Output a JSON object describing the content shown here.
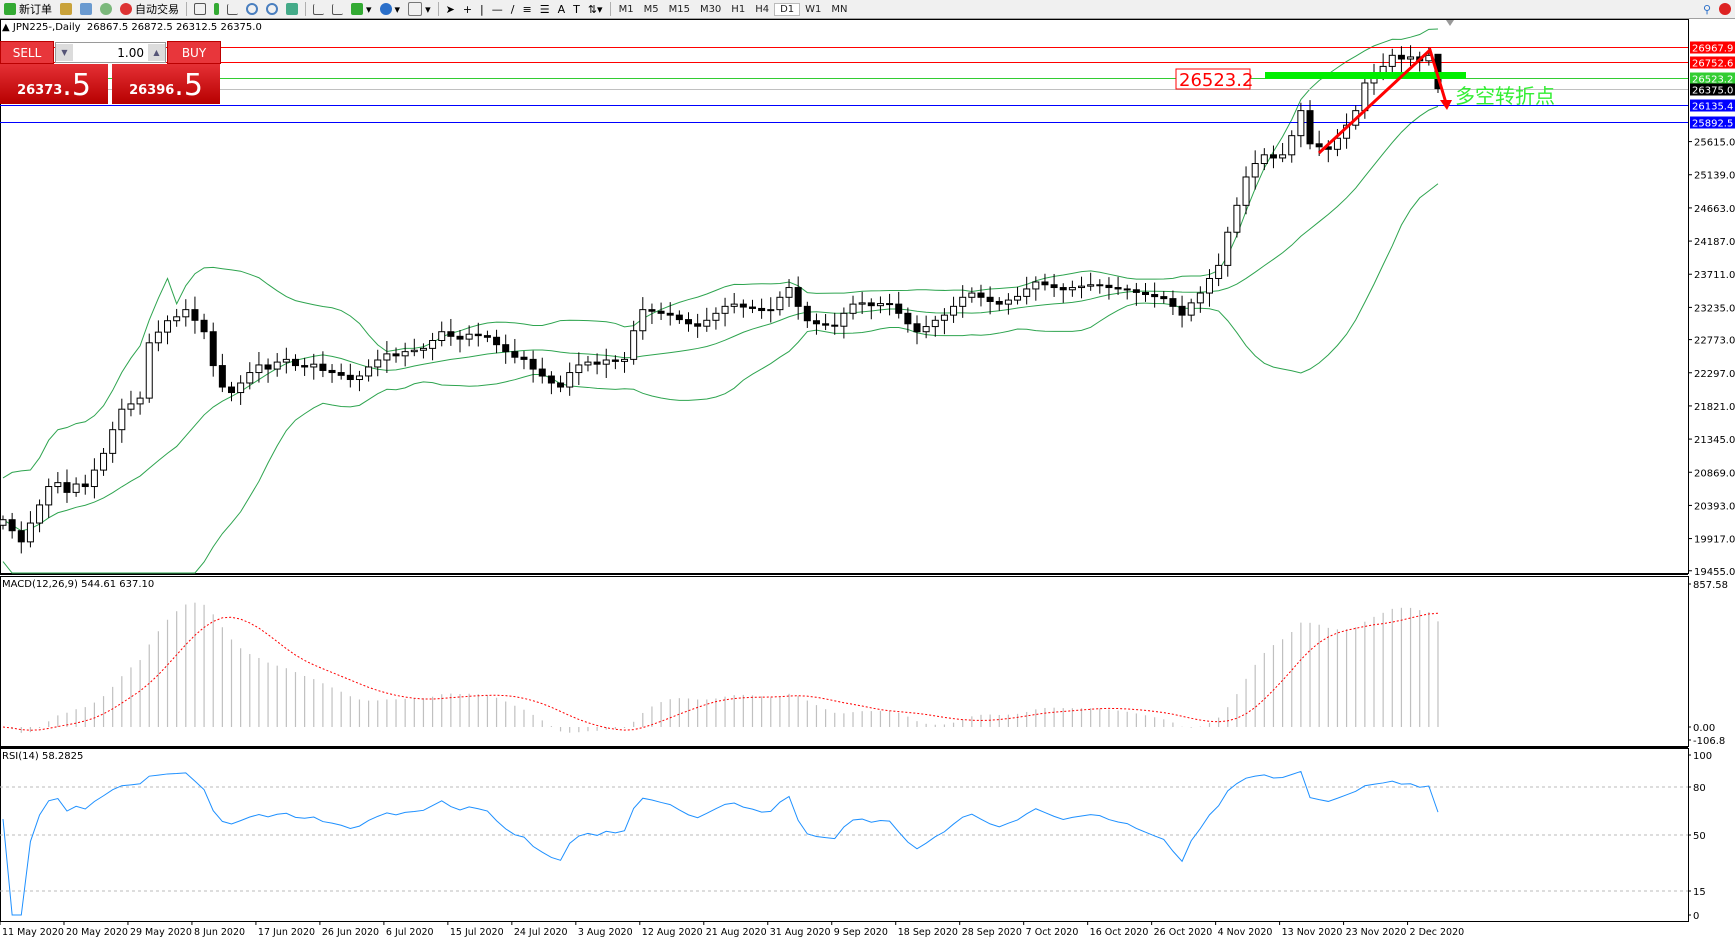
{
  "toolbar": {
    "new_order": "新订单",
    "auto_trading": "自动交易",
    "timeframes": [
      "M1",
      "M5",
      "M15",
      "M30",
      "H1",
      "H4",
      "D1",
      "W1",
      "MN"
    ],
    "active_timeframe": "D1"
  },
  "chart": {
    "symbol_title": "JPN225-,Daily",
    "ohlc_text": "26867.5 26872.5 26312.5 26375.0",
    "last_bar": {
      "open": 26867.5,
      "high": 26872.5,
      "low": 26312.5,
      "close": 26375.0
    }
  },
  "trade_panel": {
    "sell_label": "SELL",
    "buy_label": "BUY",
    "lot": "1.00",
    "sell_price_main": "26373",
    "sell_price_frac": ".5",
    "buy_price_main": "26396",
    "buy_price_frac": ".5"
  },
  "price_axis": {
    "ylim": [
      19423,
      27360
    ],
    "ticks": [
      "25615.0",
      "25139.0",
      "24663.0",
      "24187.0",
      "23711.0",
      "23235.0",
      "22773.0",
      "22297.0",
      "21821.0",
      "21345.0",
      "20869.0",
      "20393.0",
      "19917.0",
      "19455.0"
    ]
  },
  "levels": [
    {
      "price": 26967.9,
      "label": "26967.9",
      "color": "#ff0000",
      "label_color": "#ffffff"
    },
    {
      "price": 26752.6,
      "label": "26752.6",
      "color": "#ff0000",
      "label_color": "#ffffff"
    },
    {
      "price": 26523.2,
      "label": "26523.2",
      "color": "#32cd32",
      "label_color": "#ffffff"
    },
    {
      "price": 26375.0,
      "label": "26375.0",
      "color": "#c0c0c0",
      "box": "#000000",
      "label_color": "#ffffff"
    },
    {
      "price": 26135.4,
      "label": "26135.4",
      "color": "#0000ff",
      "label_color": "#ffffff"
    },
    {
      "price": 25892.5,
      "label": "25892.5",
      "color": "#0000ff",
      "label_color": "#ffffff"
    }
  ],
  "annotations": {
    "price_box": "26523.2",
    "turning_point_text": "多空转折点"
  },
  "candles": {
    "closes": [
      20188,
      20030,
      19870,
      20140,
      20400,
      20664,
      20720,
      20580,
      20700,
      20664,
      20900,
      21140,
      21480,
      21774,
      21850,
      21933,
      22727,
      22880,
      23044,
      23100,
      23203,
      23050,
      22886,
      22400,
      22092,
      22013,
      22150,
      22300,
      22409,
      22350,
      22450,
      22489,
      22400,
      22380,
      22420,
      22330,
      22300,
      22260,
      22200,
      22251,
      22380,
      22480,
      22568,
      22540,
      22600,
      22620,
      22647,
      22760,
      22886,
      22820,
      22780,
      22850,
      22830,
      22806,
      22700,
      22600,
      22520,
      22489,
      22350,
      22250,
      22150,
      22092,
      22300,
      22409,
      22450,
      22420,
      22480,
      22460,
      22489,
      22900,
      23203,
      23180,
      23150,
      23124,
      23060,
      23000,
      22965,
      23050,
      23150,
      23250,
      23282,
      23240,
      23220,
      23190,
      23203,
      23380,
      23520,
      23250,
      23044,
      23000,
      22980,
      22965,
      23150,
      23282,
      23300,
      23260,
      23290,
      23282,
      23150,
      23000,
      22886,
      22960,
      23050,
      23124,
      23250,
      23380,
      23441,
      23380,
      23320,
      23282,
      23340,
      23393,
      23500,
      23600,
      23560,
      23520,
      23488,
      23520,
      23540,
      23560,
      23552,
      23520,
      23500,
      23488,
      23450,
      23420,
      23390,
      23361,
      23250,
      23124,
      23300,
      23441,
      23650,
      23838,
      24314,
      24700,
      25107,
      25300,
      25425,
      25380,
      25425,
      25700,
      26059,
      25583,
      25540,
      25504,
      25663,
      25850,
      26059,
      26456,
      26580,
      26694,
      26853,
      26800,
      26830,
      26774,
      26853,
      26375
    ]
  },
  "macd": {
    "label": "MACD(12,26,9) 544.61 637.10",
    "ticks": [
      "857.58",
      "0.00",
      "-106.8"
    ],
    "ylim": [
      -106.8,
      857.58
    ]
  },
  "rsi": {
    "label": "RSI(14) 58.2825",
    "ticks": [
      "100",
      "80",
      "50",
      "15",
      "0"
    ],
    "levels": [
      80,
      50,
      15
    ]
  },
  "date_axis": [
    "11 May 2020",
    "20 May 2020",
    "29 May 2020",
    "8 Jun 2020",
    "17 Jun 2020",
    "26 Jun 2020",
    "6 Jul 2020",
    "15 Jul 2020",
    "24 Jul 2020",
    "3 Aug 2020",
    "12 Aug 2020",
    "21 Aug 2020",
    "31 Aug 2020",
    "9 Sep 2020",
    "18 Sep 2020",
    "28 Sep 2020",
    "7 Oct 2020",
    "16 Oct 2020",
    "26 Oct 2020",
    "4 Nov 2020",
    "13 Nov 2020",
    "23 Nov 2020",
    "2 Dec 2020"
  ],
  "colors": {
    "bands": "#2ea44f",
    "rsi_line": "#1e90ff",
    "macd_hist": "#c0c0c0",
    "macd_signal": "#ff0000",
    "arrow": "#ff0000",
    "turning_text": "#33ee33"
  }
}
